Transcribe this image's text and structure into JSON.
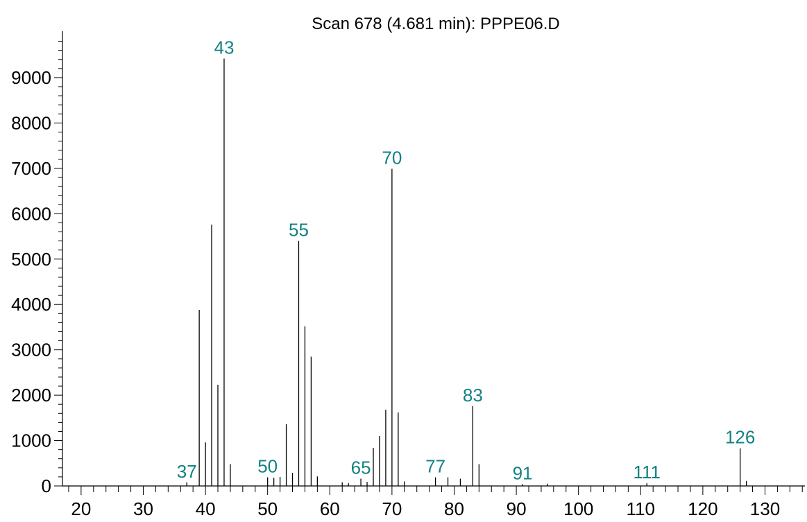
{
  "chart_data": {
    "type": "bar",
    "title": "Scan 678 (4.681 min): PPPE06.D",
    "xlabel": "",
    "ylabel": "",
    "xlim": [
      17,
      137
    ],
    "ylim": [
      0,
      10000
    ],
    "x_ticks": [
      20,
      30,
      40,
      50,
      60,
      70,
      80,
      90,
      100,
      110,
      120,
      130
    ],
    "y_ticks": [
      0,
      1000,
      2000,
      3000,
      4000,
      5000,
      6000,
      7000,
      8000,
      9000
    ],
    "grid": false,
    "bar_style": "stick",
    "peaks": [
      {
        "x": 37,
        "y": 80
      },
      {
        "x": 39,
        "y": 3880
      },
      {
        "x": 40,
        "y": 960
      },
      {
        "x": 41,
        "y": 5760
      },
      {
        "x": 42,
        "y": 2230
      },
      {
        "x": 43,
        "y": 9420
      },
      {
        "x": 44,
        "y": 480
      },
      {
        "x": 50,
        "y": 190
      },
      {
        "x": 51,
        "y": 180
      },
      {
        "x": 52,
        "y": 200
      },
      {
        "x": 53,
        "y": 1360
      },
      {
        "x": 54,
        "y": 290
      },
      {
        "x": 55,
        "y": 5400
      },
      {
        "x": 56,
        "y": 3520
      },
      {
        "x": 57,
        "y": 2850
      },
      {
        "x": 58,
        "y": 210
      },
      {
        "x": 62,
        "y": 80
      },
      {
        "x": 63,
        "y": 60
      },
      {
        "x": 65,
        "y": 160
      },
      {
        "x": 66,
        "y": 90
      },
      {
        "x": 67,
        "y": 840
      },
      {
        "x": 68,
        "y": 1100
      },
      {
        "x": 69,
        "y": 1680
      },
      {
        "x": 70,
        "y": 6990
      },
      {
        "x": 71,
        "y": 1620
      },
      {
        "x": 72,
        "y": 100
      },
      {
        "x": 77,
        "y": 190
      },
      {
        "x": 79,
        "y": 190
      },
      {
        "x": 81,
        "y": 160
      },
      {
        "x": 83,
        "y": 1760
      },
      {
        "x": 84,
        "y": 480
      },
      {
        "x": 91,
        "y": 40
      },
      {
        "x": 95,
        "y": 50
      },
      {
        "x": 111,
        "y": 60
      },
      {
        "x": 126,
        "y": 830
      },
      {
        "x": 127,
        "y": 110
      }
    ],
    "peak_labels": [
      {
        "x": 37,
        "y": 80,
        "text": "37"
      },
      {
        "x": 43,
        "y": 9420,
        "text": "43"
      },
      {
        "x": 50,
        "y": 190,
        "text": "50"
      },
      {
        "x": 55,
        "y": 5400,
        "text": "55"
      },
      {
        "x": 65,
        "y": 160,
        "text": "65"
      },
      {
        "x": 70,
        "y": 6990,
        "text": "70"
      },
      {
        "x": 77,
        "y": 190,
        "text": "77"
      },
      {
        "x": 83,
        "y": 1760,
        "text": "83"
      },
      {
        "x": 91,
        "y": 40,
        "text": "91"
      },
      {
        "x": 111,
        "y": 60,
        "text": "111"
      },
      {
        "x": 126,
        "y": 830,
        "text": "126"
      }
    ],
    "colors": {
      "bars": "#000000",
      "axes": "#000000",
      "peak_labels": "#138282",
      "text": "#000000"
    }
  }
}
